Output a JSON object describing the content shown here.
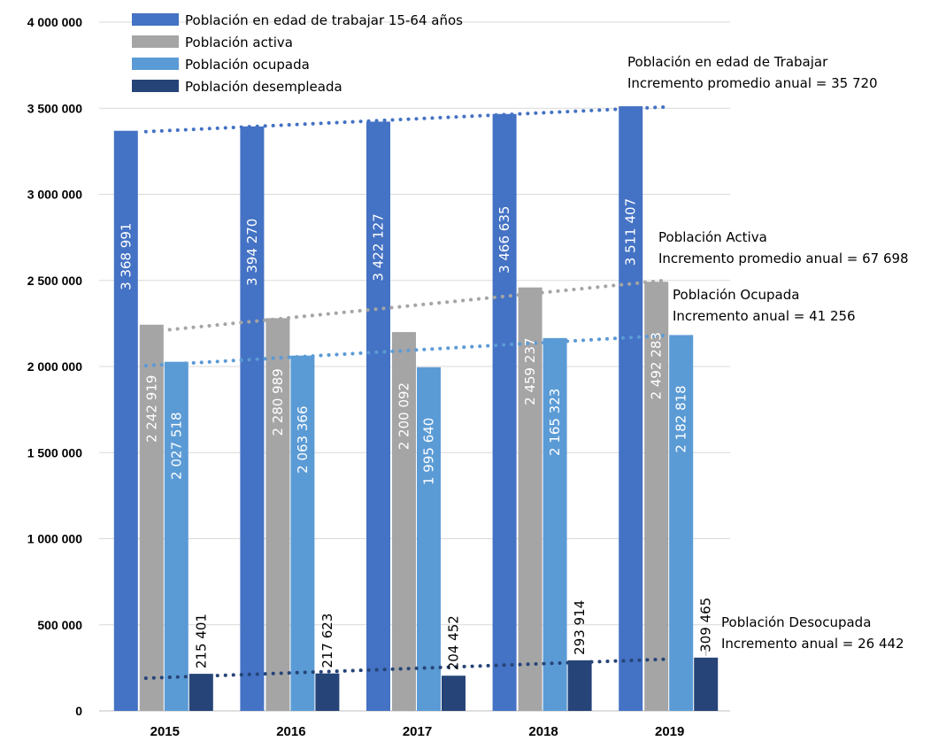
{
  "chart_data": {
    "type": "bar",
    "categories": [
      "2015",
      "2016",
      "2017",
      "2018",
      "2019"
    ],
    "series": [
      {
        "name": "Población en edad de trabajar 15-64 años",
        "color": "#4472C4",
        "values": [
          3368991,
          3394270,
          3422127,
          3466635,
          3511407
        ],
        "labels": [
          "3 368 991",
          "3 394 270",
          "3 422 127",
          "3 466 635",
          "3 511 407"
        ]
      },
      {
        "name": "Población activa",
        "color": "#A5A5A5",
        "values": [
          2242919,
          2280989,
          2200092,
          2459237,
          2492283
        ],
        "labels": [
          "2 242 919",
          "2 280 989",
          "2 200 092",
          "2 459 237",
          "2 492 283"
        ]
      },
      {
        "name": "Población ocupada",
        "color": "#5B9BD5",
        "values": [
          2027518,
          2063366,
          1995640,
          2165323,
          2182818
        ],
        "labels": [
          "2 027 518",
          "2 063 366",
          "1 995 640",
          "2 165 323",
          "2 182 818"
        ]
      },
      {
        "name": "Población desempleada",
        "color": "#264478",
        "values": [
          215401,
          217623,
          204452,
          293914,
          309465
        ],
        "labels": [
          "215 401",
          "217 623",
          "204 452",
          "293 914",
          "309 465"
        ]
      }
    ],
    "ylim": [
      0,
      4000000
    ],
    "yticks": [
      0,
      500000,
      1000000,
      1500000,
      2000000,
      2500000,
      3000000,
      3500000,
      4000000
    ],
    "ytick_labels": [
      "0",
      "500 000",
      "1 000 000",
      "1 500 000",
      "2 000 000",
      "2 500 000",
      "3 000 000",
      "3 500 000",
      "4 000 000"
    ],
    "grid": true,
    "legend": "top-left",
    "trendlines": [
      {
        "series": "Población en edad de trabajar 15-64 años",
        "color": "#4472C4",
        "start": 3364000,
        "end": 3507000
      },
      {
        "series": "Población activa",
        "color": "#A5A5A5",
        "start": 2200000,
        "end": 2500000
      },
      {
        "series": "Población ocupada",
        "color": "#5B9BD5",
        "start": 2005000,
        "end": 2180000
      },
      {
        "series": "Población desempleada",
        "color": "#264478",
        "start": 190000,
        "end": 300000
      }
    ],
    "annotations": [
      {
        "lines": [
          "Población en edad de Trabajar",
          "Incremento promedio anual = 35 720"
        ]
      },
      {
        "lines": [
          "Población Activa",
          "Incremento promedio anual = 67 698"
        ]
      },
      {
        "lines": [
          "Población Ocupada",
          "Incremento anual = 41 256"
        ]
      },
      {
        "lines": [
          "Población Desocupada",
          "Incremento anual = 26 442"
        ]
      }
    ]
  }
}
